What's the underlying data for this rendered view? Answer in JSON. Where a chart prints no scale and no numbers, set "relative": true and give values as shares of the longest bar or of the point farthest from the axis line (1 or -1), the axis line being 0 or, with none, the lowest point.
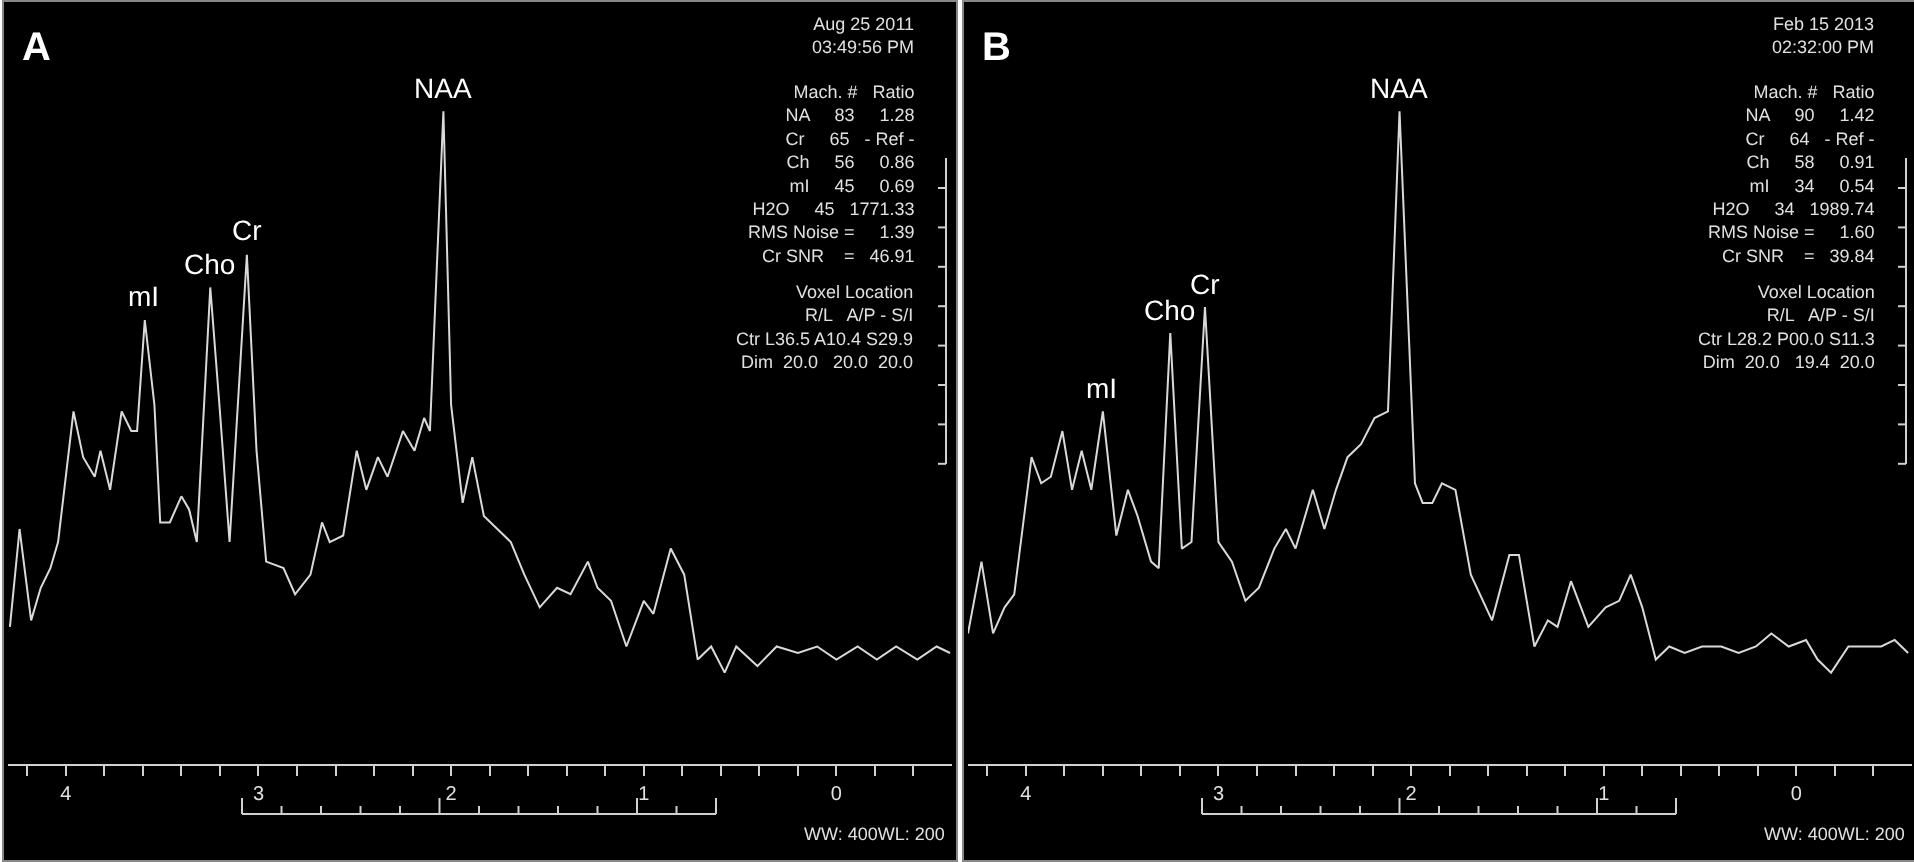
{
  "chart_data": [
    {
      "type": "line",
      "title": "A",
      "relative": true,
      "x": [
        4.29,
        4.24,
        4.18,
        4.13,
        4.08,
        4.04,
        3.96,
        3.91,
        3.85,
        3.82,
        3.77,
        3.71,
        3.66,
        3.63,
        3.59,
        3.54,
        3.51,
        3.46,
        3.4,
        3.36,
        3.32,
        3.25,
        3.2,
        3.15,
        3.06,
        3.01,
        2.96,
        2.87,
        2.81,
        2.73,
        2.67,
        2.63,
        2.56,
        2.49,
        2.44,
        2.38,
        2.33,
        2.25,
        2.19,
        2.14,
        2.11,
        2.04,
        2.0,
        1.94,
        1.89,
        1.83,
        1.76,
        1.69,
        1.62,
        1.54,
        1.45,
        1.38,
        1.29,
        1.24,
        1.17,
        1.09,
        1.0,
        0.95,
        0.86,
        0.79,
        0.72,
        0.65,
        0.58,
        0.52,
        0.41,
        0.31,
        0.2,
        0.1,
        0.0,
        -0.11,
        -0.21,
        -0.31,
        -0.42,
        -0.52,
        -0.59
      ],
      "series": [
        {
          "color": "#d9d9d9",
          "values": [
            0.21,
            0.36,
            0.22,
            0.27,
            0.3,
            0.34,
            0.54,
            0.47,
            0.44,
            0.48,
            0.42,
            0.54,
            0.51,
            0.51,
            0.68,
            0.55,
            0.37,
            0.37,
            0.41,
            0.39,
            0.34,
            0.73,
            0.54,
            0.34,
            0.78,
            0.48,
            0.31,
            0.3,
            0.26,
            0.29,
            0.37,
            0.34,
            0.35,
            0.48,
            0.42,
            0.47,
            0.44,
            0.51,
            0.48,
            0.53,
            0.51,
            1,
            0.55,
            0.4,
            0.47,
            0.38,
            0.36,
            0.34,
            0.29,
            0.24,
            0.27,
            0.26,
            0.31,
            0.27,
            0.25,
            0.18,
            0.25,
            0.23,
            0.33,
            0.29,
            0.16,
            0.18,
            0.14,
            0.18,
            0.15,
            0.18,
            0.17,
            0.18,
            0.16,
            0.18,
            0.16,
            0.18,
            0.16,
            0.18,
            0.17
          ]
        }
      ],
      "xlim": [
        4.3,
        -0.6
      ],
      "xticks": [
        {
          "value": 4.2,
          "label": null
        },
        4,
        {
          "value": 3.8,
          "label": null
        },
        {
          "value": 3.6,
          "label": null
        },
        {
          "value": 3.4,
          "label": null
        },
        {
          "value": 3.2,
          "label": null
        },
        3,
        {
          "value": 2.8,
          "label": null
        },
        {
          "value": 2.6,
          "label": null
        },
        {
          "value": 2.4,
          "label": null
        },
        {
          "value": 2.2,
          "label": null
        },
        2,
        {
          "value": 1.8,
          "label": null
        },
        {
          "value": 1.6,
          "label": null
        },
        {
          "value": 1.4,
          "label": null
        },
        {
          "value": 1.2,
          "label": null
        },
        1,
        {
          "value": 0.8,
          "label": null
        },
        {
          "value": 0.6,
          "label": null
        },
        {
          "value": 0.4,
          "label": null
        },
        {
          "value": 0.2,
          "label": null
        },
        0,
        {
          "value": -0.2,
          "label": null
        },
        {
          "value": -0.4,
          "label": null
        }
      ],
      "annotations": [
        {
          "text": "mI",
          "x": 3.59,
          "y": 0.68
        },
        {
          "text": "Cho",
          "x": 3.25,
          "y": 0.73
        },
        {
          "text": "Cr",
          "x": 3.06,
          "y": 0.78
        },
        {
          "text": "NAA",
          "x": 2.04,
          "y": 1
        },
        "Aug 25 2011\n03:49:56 PM",
        "Mach. #   Ratio\nNA     83     1.28\nCr     65   - Ref -\nCh     56     0.86\nmI     45     0.69\nH2O     45   1771.33\nRMS Noise =     1.39\nCr SNR    =   46.91",
        "Voxel Location\nR/L   A/P - S/I\nCtr L36.5 A10.4 S29.9\nDim  20.0   20.0  20.0",
        "WW: 400WL: 200"
      ]
    },
    {
      "type": "line",
      "title": "B",
      "relative": true,
      "x": [
        4.3,
        4.23,
        4.17,
        4.11,
        4.06,
        3.97,
        3.92,
        3.87,
        3.81,
        3.76,
        3.71,
        3.66,
        3.6,
        3.53,
        3.47,
        3.42,
        3.35,
        3.31,
        3.25,
        3.19,
        3.14,
        3.07,
        3.0,
        2.93,
        2.86,
        2.79,
        2.71,
        2.65,
        2.6,
        2.51,
        2.45,
        2.39,
        2.33,
        2.26,
        2.19,
        2.12,
        2.06,
        1.98,
        1.94,
        1.89,
        1.84,
        1.77,
        1.69,
        1.58,
        1.49,
        1.44,
        1.36,
        1.29,
        1.24,
        1.17,
        1.08,
        0.99,
        0.92,
        0.86,
        0.8,
        0.73,
        0.66,
        0.58,
        0.49,
        0.39,
        0.3,
        0.21,
        0.13,
        0.04,
        -0.05,
        -0.11,
        -0.18,
        -0.27,
        -0.36,
        -0.44,
        -0.51,
        -0.58
      ],
      "series": [
        {
          "color": "#d9d9d9",
          "values": [
            0.2,
            0.31,
            0.2,
            0.24,
            0.26,
            0.47,
            0.43,
            0.44,
            0.51,
            0.42,
            0.48,
            0.42,
            0.54,
            0.35,
            0.42,
            0.38,
            0.31,
            0.3,
            0.66,
            0.33,
            0.34,
            0.7,
            0.34,
            0.31,
            0.25,
            0.27,
            0.33,
            0.36,
            0.33,
            0.42,
            0.36,
            0.42,
            0.47,
            0.49,
            0.53,
            0.54,
            1,
            0.43,
            0.4,
            0.4,
            0.43,
            0.42,
            0.29,
            0.22,
            0.32,
            0.32,
            0.18,
            0.22,
            0.21,
            0.28,
            0.21,
            0.24,
            0.25,
            0.29,
            0.24,
            0.16,
            0.18,
            0.17,
            0.18,
            0.18,
            0.17,
            0.18,
            0.2,
            0.18,
            0.19,
            0.16,
            0.14,
            0.18,
            0.18,
            0.18,
            0.19,
            0.17
          ]
        }
      ],
      "xlim": [
        4.3,
        -0.6
      ],
      "xticks": [
        {
          "value": 4.2,
          "label": null
        },
        4,
        {
          "value": 3.8,
          "label": null
        },
        {
          "value": 3.6,
          "label": null
        },
        {
          "value": 3.4,
          "label": null
        },
        {
          "value": 3.2,
          "label": null
        },
        3,
        {
          "value": 2.8,
          "label": null
        },
        {
          "value": 2.6,
          "label": null
        },
        {
          "value": 2.4,
          "label": null
        },
        {
          "value": 2.2,
          "label": null
        },
        2,
        {
          "value": 1.8,
          "label": null
        },
        {
          "value": 1.6,
          "label": null
        },
        {
          "value": 1.4,
          "label": null
        },
        {
          "value": 1.2,
          "label": null
        },
        1,
        {
          "value": 0.8,
          "label": null
        },
        {
          "value": 0.6,
          "label": null
        },
        {
          "value": 0.4,
          "label": null
        },
        {
          "value": 0.2,
          "label": null
        },
        0,
        {
          "value": -0.2,
          "label": null
        },
        {
          "value": -0.4,
          "label": null
        }
      ],
      "annotations": [
        {
          "text": "mI",
          "x": 3.6,
          "y": 0.54
        },
        {
          "text": "Cho",
          "x": 3.25,
          "y": 0.66
        },
        {
          "text": "Cr",
          "x": 3.07,
          "y": 0.7
        },
        {
          "text": "NAA",
          "x": 2.06,
          "y": 1
        },
        "Feb 15 2013\n02:32:00 PM",
        "Mach. #   Ratio\nNA     90     1.42\nCr     64   - Ref -\nCh     58     0.91\nmI     34     0.54\nH2O     34   1989.74\nRMS Noise =     1.60\nCr SNR    =   39.84",
        "Voxel Location\nR/L   A/P - S/I\nCtr L28.2 P00.0 S11.3\nDim  20.0   19.4  20.0",
        "WW: 400WL: 200"
      ]
    }
  ]
}
